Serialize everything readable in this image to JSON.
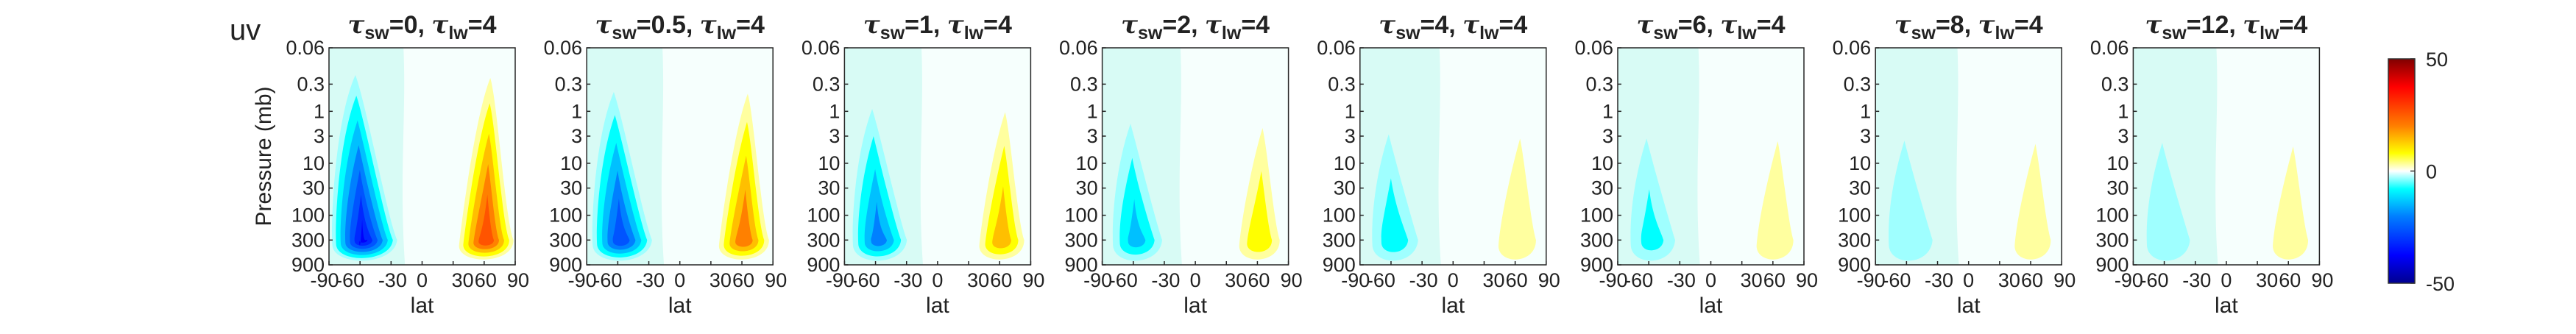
{
  "figure_label": "uv",
  "chart_data": {
    "type": "contour",
    "panels": [
      {
        "tau_sw": "0",
        "tau_lw": "4",
        "sw_sub": "sw",
        "lw_sub": "lw",
        "neg_peak": -38,
        "pos_peak": 30
      },
      {
        "tau_sw": "0.5",
        "tau_lw": "4",
        "sw_sub": "sw",
        "lw_sub": "lw",
        "neg_peak": -30,
        "pos_peak": 24
      },
      {
        "tau_sw": "1",
        "tau_lw": "4",
        "sw_sub": "sw",
        "lw_sub": "lw",
        "neg_peak": -22,
        "pos_peak": 17
      },
      {
        "tau_sw": "2",
        "tau_lw": "4",
        "sw_sub": "sw",
        "lw_sub": "lw",
        "neg_peak": -15,
        "pos_peak": 11
      },
      {
        "tau_sw": "4",
        "tau_lw": "4",
        "sw_sub": "sw",
        "lw_sub": "lw",
        "neg_peak": -10,
        "pos_peak": 7
      },
      {
        "tau_sw": "6",
        "tau_lw": "4",
        "sw_sub": "sw",
        "lw_sub": "lw",
        "neg_peak": -8,
        "pos_peak": 6
      },
      {
        "tau_sw": "8",
        "tau_lw": "4",
        "sw_sub": "sw",
        "lw_sub": "lw",
        "neg_peak": -7,
        "pos_peak": 5
      },
      {
        "tau_sw": "12",
        "tau_lw": "4",
        "sw_sub": "sw",
        "lw_sub": "lw",
        "neg_peak": -6,
        "pos_peak": 4
      }
    ],
    "xlabel": "lat",
    "ylabel": "Pressure (mb)",
    "xlim": [
      -90,
      90
    ],
    "xticks": [
      -90,
      -60,
      -30,
      0,
      30,
      60,
      90
    ],
    "xtick_labels": [
      "-90",
      "-60",
      "-30",
      "0",
      "30",
      "60",
      "90"
    ],
    "ylim": [
      0.06,
      900
    ],
    "yscale": "log",
    "yreversed": true,
    "yticks": [
      0.06,
      0.3,
      1,
      3,
      10,
      30,
      100,
      300,
      900
    ],
    "ytick_labels": [
      "0.06",
      "0.3",
      "1",
      "3",
      "10",
      "30",
      "100",
      "300",
      "900"
    ],
    "colorbar": {
      "range": [
        -50,
        50
      ],
      "ticks": [
        50,
        0,
        -50
      ],
      "tick_labels": [
        "50",
        "0",
        "-50"
      ],
      "colormap": "jet",
      "colors": [
        "#00008f",
        "#0000ff",
        "#0080ff",
        "#00ffff",
        "#ffffff",
        "#ffff00",
        "#ff8000",
        "#ff0000",
        "#800000"
      ]
    },
    "grid": false
  }
}
